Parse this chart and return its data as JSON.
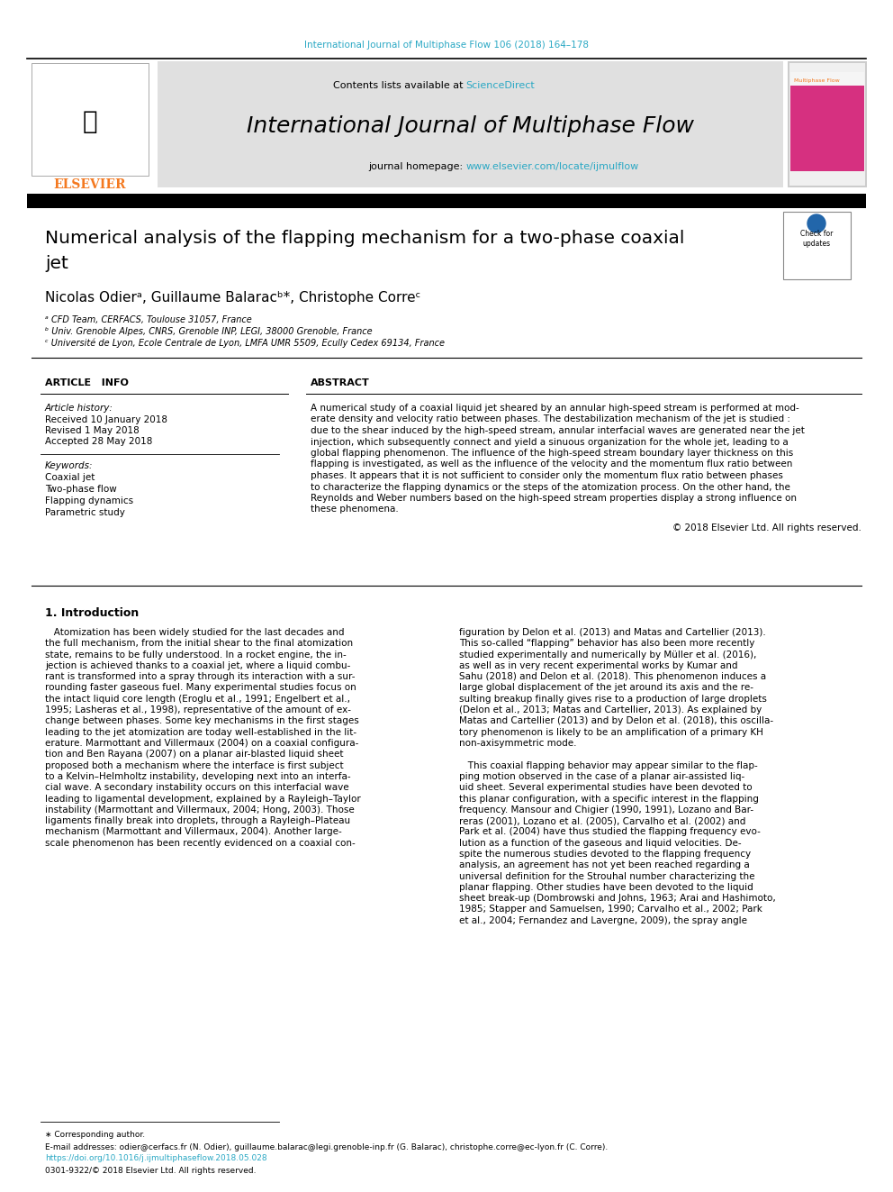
{
  "page_width": 9.92,
  "page_height": 13.23,
  "dpi": 100,
  "bg_color": "#ffffff",
  "top_journal_ref": "International Journal of Multiphase Flow 106 (2018) 164–178",
  "top_journal_ref_color": "#2aa8c4",
  "journal_name": "International Journal of Multiphase Flow",
  "contents_text": "Contents lists available at ",
  "sciencedirect_text": "ScienceDirect",
  "sciencedirect_color": "#2aa8c4",
  "journal_homepage_prefix": "journal homepage: ",
  "journal_homepage_url": "www.elsevier.com/locate/ijmulflow",
  "journal_homepage_color": "#2aa8c4",
  "header_bg": "#e0e0e0",
  "elsevier_orange": "#f47920",
  "elsevier_text": "ELSEVIER",
  "article_title_line1": "Numerical analysis of the flapping mechanism for a two-phase coaxial",
  "article_title_line2": "jet",
  "authors_line": "Nicolas Odierᵃ, Guillaume Balaracᵇ*, Christophe Correᶜ",
  "affil_a": "ᵃ CFD Team, CERFACS, Toulouse 31057, France",
  "affil_b": "ᵇ Univ. Grenoble Alpes, CNRS, Grenoble INP, LEGI, 38000 Grenoble, France",
  "affil_c": "ᶜ Université de Lyon, Ecole Centrale de Lyon, LMFA UMR 5509, Ecully Cedex 69134, France",
  "article_info_title": "ARTICLE   INFO",
  "abstract_title": "ABSTRACT",
  "article_history_label": "Article history:",
  "received": "Received 10 January 2018",
  "revised": "Revised 1 May 2018",
  "accepted": "Accepted 28 May 2018",
  "keywords_label": "Keywords:",
  "keywords": [
    "Coaxial jet",
    "Two-phase flow",
    "Flapping dynamics",
    "Parametric study"
  ],
  "abstract_lines": [
    "A numerical study of a coaxial liquid jet sheared by an annular high-speed stream is performed at mod-",
    "erate density and velocity ratio between phases. The destabilization mechanism of the jet is studied :",
    "due to the shear induced by the high-speed stream, annular interfacial waves are generated near the jet",
    "injection, which subsequently connect and yield a sinuous organization for the whole jet, leading to a",
    "global flapping phenomenon. The influence of the high-speed stream boundary layer thickness on this",
    "flapping is investigated, as well as the influence of the velocity and the momentum flux ratio between",
    "phases. It appears that it is not sufficient to consider only the momentum flux ratio between phases",
    "to characterize the flapping dynamics or the steps of the atomization process. On the other hand, the",
    "Reynolds and Weber numbers based on the high-speed stream properties display a strong influence on",
    "these phenomena."
  ],
  "copyright": "© 2018 Elsevier Ltd. All rights reserved.",
  "section1_title": "1. Introduction",
  "col1_lines": [
    "   Atomization has been widely studied for the last decades and",
    "the full mechanism, from the initial shear to the final atomization",
    "state, remains to be fully understood. In a rocket engine, the in-",
    "jection is achieved thanks to a coaxial jet, where a liquid combu-",
    "rant is transformed into a spray through its interaction with a sur-",
    "rounding faster gaseous fuel. Many experimental studies focus on",
    "the intact liquid core length (Eroglu et al., 1991; Engelbert et al.,",
    "1995; Lasheras et al., 1998), representative of the amount of ex-",
    "change between phases. Some key mechanisms in the first stages",
    "leading to the jet atomization are today well-established in the lit-",
    "erature. Marmottant and Villermaux (2004) on a coaxial configura-",
    "tion and Ben Rayana (2007) on a planar air-blasted liquid sheet",
    "proposed both a mechanism where the interface is first subject",
    "to a Kelvin–Helmholtz instability, developing next into an interfa-",
    "cial wave. A secondary instability occurs on this interfacial wave",
    "leading to ligamental development, explained by a Rayleigh–Taylor",
    "instability (Marmottant and Villermaux, 2004; Hong, 2003). Those",
    "ligaments finally break into droplets, through a Rayleigh–Plateau",
    "mechanism (Marmottant and Villermaux, 2004). Another large-",
    "scale phenomenon has been recently evidenced on a coaxial con-"
  ],
  "col2_lines": [
    "figuration by Delon et al. (2013) and Matas and Cartellier (2013).",
    "This so-called “flapping” behavior has also been more recently",
    "studied experimentally and numerically by Müller et al. (2016),",
    "as well as in very recent experimental works by Kumar and",
    "Sahu (2018) and Delon et al. (2018). This phenomenon induces a",
    "large global displacement of the jet around its axis and the re-",
    "sulting breakup finally gives rise to a production of large droplets",
    "(Delon et al., 2013; Matas and Cartellier, 2013). As explained by",
    "Matas and Cartellier (2013) and by Delon et al. (2018), this oscilla-",
    "tory phenomenon is likely to be an amplification of a primary KH",
    "non-axisymmetric mode.",
    "",
    "   This coaxial flapping behavior may appear similar to the flap-",
    "ping motion observed in the case of a planar air-assisted liq-",
    "uid sheet. Several experimental studies have been devoted to",
    "this planar configuration, with a specific interest in the flapping",
    "frequency. Mansour and Chigier (1990, 1991), Lozano and Bar-",
    "reras (2001), Lozano et al. (2005), Carvalho et al. (2002) and",
    "Park et al. (2004) have thus studied the flapping frequency evo-",
    "lution as a function of the gaseous and liquid velocities. De-",
    "spite the numerous studies devoted to the flapping frequency",
    "analysis, an agreement has not yet been reached regarding a",
    "universal definition for the Strouhal number characterizing the",
    "planar flapping. Other studies have been devoted to the liquid",
    "sheet break-up (Dombrowski and Johns, 1963; Arai and Hashimoto,",
    "1985; Stapper and Samuelsen, 1990; Carvalho et al., 2002; Park",
    "et al., 2004; Fernandez and Lavergne, 2009), the spray angle"
  ],
  "footnote_star": "∗ Corresponding author.",
  "footnote_email": "E-mail addresses: odier@cerfacs.fr (N. Odier), guillaume.balarac@legi.grenoble-inp.fr (G. Balarac), christophe.corre@ec-lyon.fr (C. Corre).",
  "footnote_doi": "https://doi.org/10.1016/j.ijmultiphaseflow.2018.05.028",
  "footnote_issn": "0301-9322/© 2018 Elsevier Ltd. All rights reserved.",
  "link_color": "#2aa8c4",
  "text_color": "#000000"
}
